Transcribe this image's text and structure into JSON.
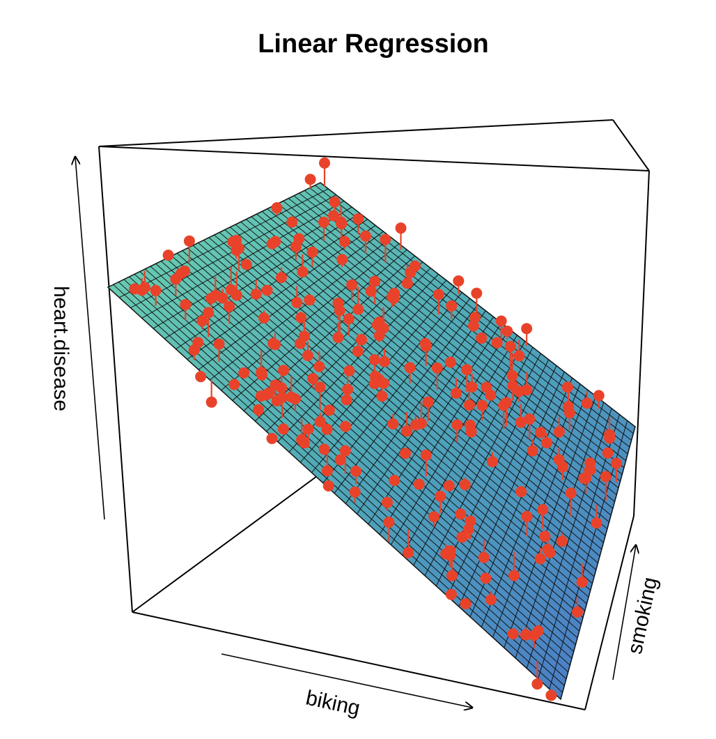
{
  "chart_data": {
    "type": "scatter",
    "title": "Linear Regression",
    "xlabel": "biking",
    "ylabel": "smoking",
    "zlabel": "heart.disease",
    "surface": "regression-plane",
    "series": [
      {
        "role": "points",
        "color": "#e8432a"
      }
    ],
    "colors": {
      "surface_top": "#6fd3b0",
      "surface_bottom": "#4a78c8",
      "points": "#e8432a",
      "box": "#000000"
    },
    "grid": false,
    "legend": "none"
  }
}
